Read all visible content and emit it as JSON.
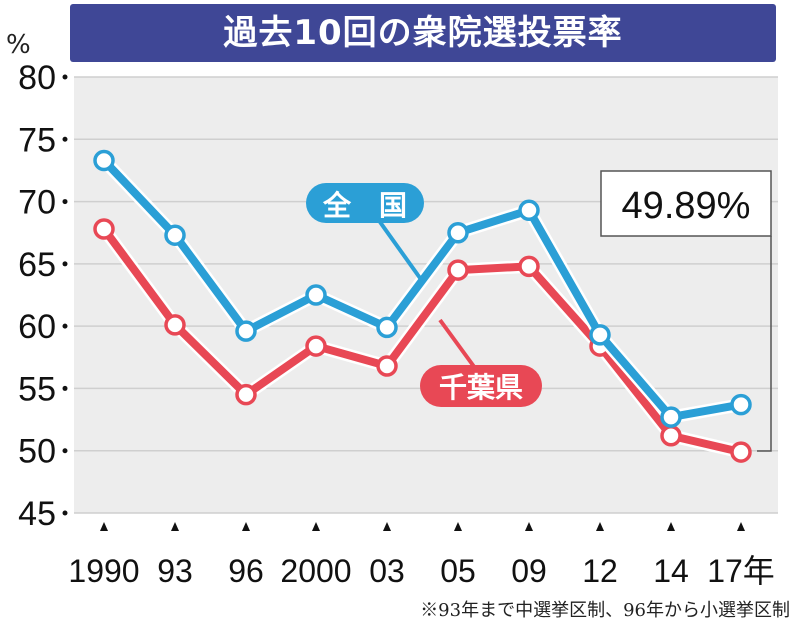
{
  "title": "過去10回の衆院選投票率",
  "unit": "%",
  "footnote": "※93年まで中選挙区制、96年から小選挙区制",
  "callout": "49.89%",
  "colors": {
    "national": "#2b9fd6",
    "chiba": "#e84855",
    "title_bg": "#3f4796",
    "plot_bg": "#ededed"
  },
  "chart_data": {
    "type": "line",
    "title": "過去10回の衆院選投票率",
    "ylabel": "%",
    "xlabel": "",
    "categories": [
      "1990",
      "93",
      "96",
      "2000",
      "03",
      "05",
      "09",
      "12",
      "14",
      "17年"
    ],
    "ylim": [
      45,
      80
    ],
    "yticks": [
      "80",
      "75",
      "70",
      "65",
      "60",
      "55",
      "50",
      "45"
    ],
    "grid": true,
    "legend": "inline",
    "series": [
      {
        "name": "全　国",
        "color": "#2b9fd6",
        "values": [
          73.3,
          67.3,
          59.6,
          62.5,
          59.9,
          67.5,
          69.3,
          59.3,
          52.7,
          53.7
        ]
      },
      {
        "name": "千葉県",
        "color": "#e84855",
        "values": [
          67.8,
          60.1,
          54.5,
          58.4,
          56.8,
          64.5,
          64.8,
          58.4,
          51.2,
          49.89
        ]
      }
    ]
  }
}
